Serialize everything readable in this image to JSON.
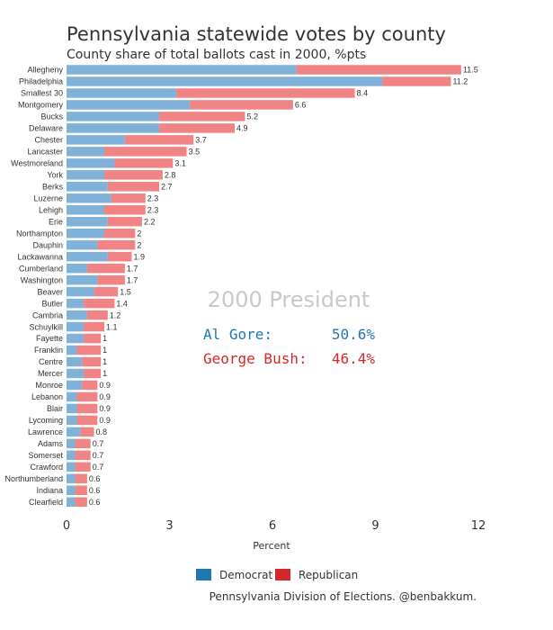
{
  "chart_data": {
    "type": "bar",
    "orientation": "horizontal",
    "stacked": true,
    "title": "Pennsylvania statewide votes by county",
    "subtitle": "County share of total ballots cast in 2000, %pts",
    "xlabel": "Percent",
    "xlim": [
      0,
      12
    ],
    "xticks": [
      0,
      3,
      6,
      9,
      12
    ],
    "grid": false,
    "legend_position": "bottom-center",
    "categories": [
      "Allegheny",
      "Philadelphia",
      "Smallest 30",
      "Montgomery",
      "Bucks",
      "Delaware",
      "Chester",
      "Lancaster",
      "Westmoreland",
      "York",
      "Berks",
      "Luzerne",
      "Lehigh",
      "Erie",
      "Northampton",
      "Dauphin",
      "Lackawanna",
      "Cumberland",
      "Washington",
      "Beaver",
      "Butler",
      "Cambria",
      "Schuylkill",
      "Fayette",
      "Franklin",
      "Centre",
      "Mercer",
      "Monroe",
      "Lebanon",
      "Blair",
      "Lycoming",
      "Lawrence",
      "Adams",
      "Somerset",
      "Crawford",
      "Northumberland",
      "Indiana",
      "Clearfield"
    ],
    "totals": [
      "11.5",
      "11.2",
      "8.4",
      "6.6",
      "5.2",
      "4.9",
      "3.7",
      "3.5",
      "3.1",
      "2.8",
      "2.7",
      "2.3",
      "2.3",
      "2.2",
      "2",
      "2",
      "1.9",
      "1.7",
      "1.7",
      "1.5",
      "1.4",
      "1.2",
      "1.1",
      "1",
      "1",
      "1",
      "1",
      "0.9",
      "0.9",
      "0.9",
      "0.9",
      "0.8",
      "0.7",
      "0.7",
      "0.7",
      "0.6",
      "0.6",
      "0.6"
    ],
    "series": [
      {
        "name": "Democrat",
        "color": "#1f77b4",
        "values": [
          6.7,
          9.2,
          3.2,
          3.6,
          2.7,
          2.7,
          1.7,
          1.1,
          1.4,
          1.1,
          1.2,
          1.3,
          1.1,
          1.2,
          1.1,
          0.9,
          1.2,
          0.6,
          0.9,
          0.8,
          0.5,
          0.6,
          0.5,
          0.5,
          0.3,
          0.45,
          0.5,
          0.45,
          0.3,
          0.3,
          0.3,
          0.4,
          0.25,
          0.25,
          0.25,
          0.25,
          0.25,
          0.25
        ]
      },
      {
        "name": "Republican",
        "color": "#d62728",
        "values": [
          4.8,
          2.0,
          5.2,
          3.0,
          2.5,
          2.2,
          2.0,
          2.4,
          1.7,
          1.7,
          1.5,
          1.0,
          1.2,
          1.0,
          0.9,
          1.1,
          0.7,
          1.1,
          0.8,
          0.7,
          0.9,
          0.6,
          0.6,
          0.5,
          0.7,
          0.55,
          0.5,
          0.45,
          0.6,
          0.6,
          0.6,
          0.4,
          0.45,
          0.45,
          0.45,
          0.35,
          0.35,
          0.35
        ]
      }
    ],
    "annotation": {
      "heading": "2000 President",
      "rows": [
        {
          "label": "Al Gore:",
          "value": "50.6%",
          "color": "#1f77b4"
        },
        {
          "label": "George Bush:",
          "value": "46.4%",
          "color": "#d62728"
        }
      ]
    },
    "source": "Pennsylvania Division of Elections. @benbakkum."
  }
}
